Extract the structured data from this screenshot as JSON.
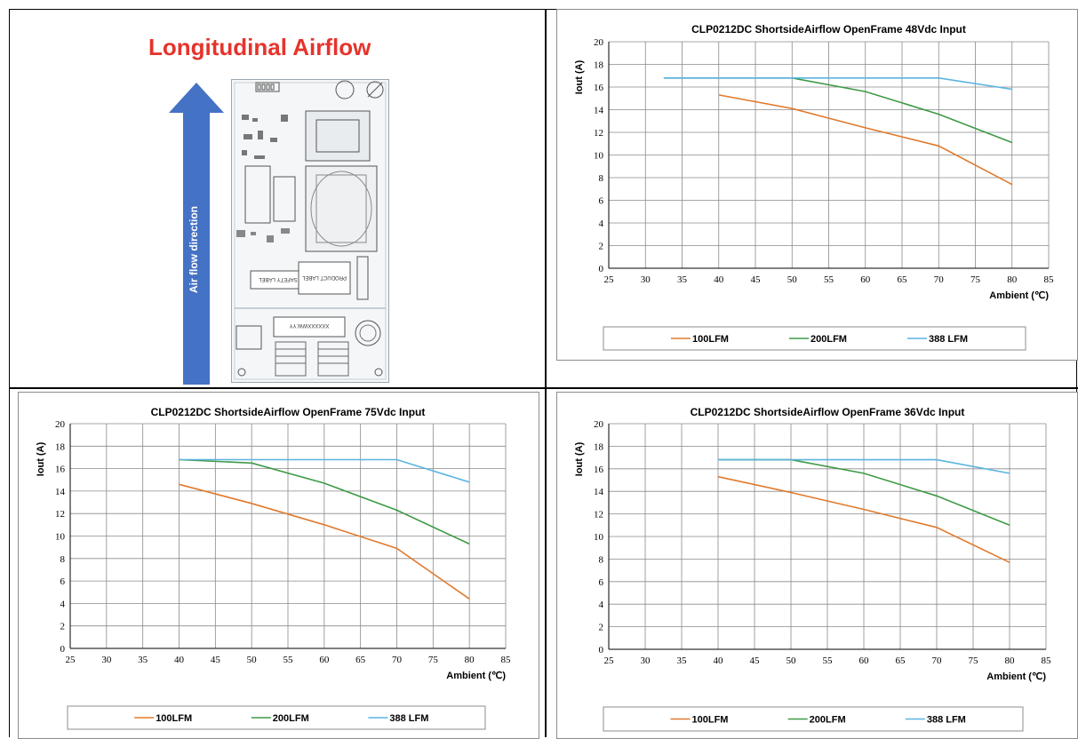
{
  "page": {
    "hero_title": "Longitudinal Airflow",
    "arrow_label": "Air flow direction",
    "board_labels": [
      "SAFETY LABEL",
      "PRODUCT LABEL",
      "XXXXXXWW.YY"
    ],
    "colors": {
      "hero": "#e5342c",
      "arrow": "#4472c4",
      "s100": "#e07a2e",
      "s200": "#3e9a46",
      "s388": "#5ab4e0"
    }
  },
  "chart_data": [
    {
      "type": "line",
      "title": "CLP0212DC  ShortsideAirflow  OpenFrame  48Vdc  Input",
      "xlabel": "Ambient (℃)",
      "ylabel": "Iout (A)",
      "xlim": [
        25,
        85
      ],
      "ylim": [
        0,
        20
      ],
      "xticks": [
        "25",
        "30",
        "35",
        "40",
        "45",
        "50",
        "55",
        "60",
        "65",
        "70",
        "75",
        "80",
        "85"
      ],
      "yticks": [
        "0",
        "2",
        "4",
        "6",
        "8",
        "10",
        "12",
        "14",
        "16",
        "18",
        "20"
      ],
      "grid": true,
      "legend_position": "bottom",
      "series": [
        {
          "name": "100LFM",
          "color": "#e07a2e",
          "points": [
            [
              40,
              15.3
            ],
            [
              50,
              14.1
            ],
            [
              60,
              12.4
            ],
            [
              70,
              10.8
            ],
            [
              80,
              7.4
            ]
          ]
        },
        {
          "name": "200LFM",
          "color": "#3e9a46",
          "points": [
            [
              32.5,
              16.8
            ],
            [
              50,
              16.8
            ],
            [
              60,
              15.6
            ],
            [
              70,
              13.6
            ],
            [
              80,
              11.1
            ]
          ]
        },
        {
          "name": "388 LFM",
          "color": "#5ab4e0",
          "points": [
            [
              32.5,
              16.8
            ],
            [
              50,
              16.8
            ],
            [
              60,
              16.8
            ],
            [
              70,
              16.8
            ],
            [
              80,
              15.8
            ]
          ]
        }
      ]
    },
    {
      "type": "line",
      "title": "CLP0212DC  ShortsideAirflow  OpenFrame  75Vdc  Input",
      "xlabel": "Ambient (℃)",
      "ylabel": "Iout (A)",
      "xlim": [
        25,
        85
      ],
      "ylim": [
        0,
        20
      ],
      "xticks": [
        "25",
        "30",
        "35",
        "40",
        "45",
        "50",
        "55",
        "60",
        "65",
        "70",
        "75",
        "80",
        "85"
      ],
      "yticks": [
        "0",
        "2",
        "4",
        "6",
        "8",
        "10",
        "12",
        "14",
        "16",
        "18",
        "20"
      ],
      "grid": true,
      "legend_position": "bottom",
      "series": [
        {
          "name": "100LFM",
          "color": "#e07a2e",
          "points": [
            [
              40,
              14.6
            ],
            [
              50,
              12.9
            ],
            [
              60,
              11.0
            ],
            [
              70,
              8.9
            ],
            [
              80,
              4.4
            ]
          ]
        },
        {
          "name": "200LFM",
          "color": "#3e9a46",
          "points": [
            [
              40,
              16.8
            ],
            [
              50,
              16.5
            ],
            [
              60,
              14.7
            ],
            [
              70,
              12.3
            ],
            [
              80,
              9.3
            ]
          ]
        },
        {
          "name": "388 LFM",
          "color": "#5ab4e0",
          "points": [
            [
              40,
              16.8
            ],
            [
              50,
              16.8
            ],
            [
              60,
              16.8
            ],
            [
              70,
              16.8
            ],
            [
              80,
              14.8
            ]
          ]
        }
      ]
    },
    {
      "type": "line",
      "title": "CLP0212DC  ShortsideAirflow  OpenFrame  36Vdc  Input",
      "xlabel": "Ambient (℃)",
      "ylabel": "Iout (A)",
      "xlim": [
        25,
        85
      ],
      "ylim": [
        0,
        20
      ],
      "xticks": [
        "25",
        "30",
        "35",
        "40",
        "45",
        "50",
        "55",
        "60",
        "65",
        "70",
        "75",
        "80",
        "85"
      ],
      "yticks": [
        "0",
        "2",
        "4",
        "6",
        "8",
        "10",
        "12",
        "14",
        "16",
        "18",
        "20"
      ],
      "grid": true,
      "legend_position": "bottom",
      "series": [
        {
          "name": "100LFM",
          "color": "#e07a2e",
          "points": [
            [
              40,
              15.3
            ],
            [
              50,
              13.9
            ],
            [
              60,
              12.4
            ],
            [
              70,
              10.8
            ],
            [
              80,
              7.7
            ]
          ]
        },
        {
          "name": "200LFM",
          "color": "#3e9a46",
          "points": [
            [
              40,
              16.8
            ],
            [
              50,
              16.8
            ],
            [
              60,
              15.6
            ],
            [
              70,
              13.6
            ],
            [
              80,
              11.0
            ]
          ]
        },
        {
          "name": "388 LFM",
          "color": "#5ab4e0",
          "points": [
            [
              40,
              16.8
            ],
            [
              50,
              16.8
            ],
            [
              60,
              16.8
            ],
            [
              70,
              16.8
            ],
            [
              80,
              15.6
            ]
          ]
        }
      ]
    }
  ]
}
